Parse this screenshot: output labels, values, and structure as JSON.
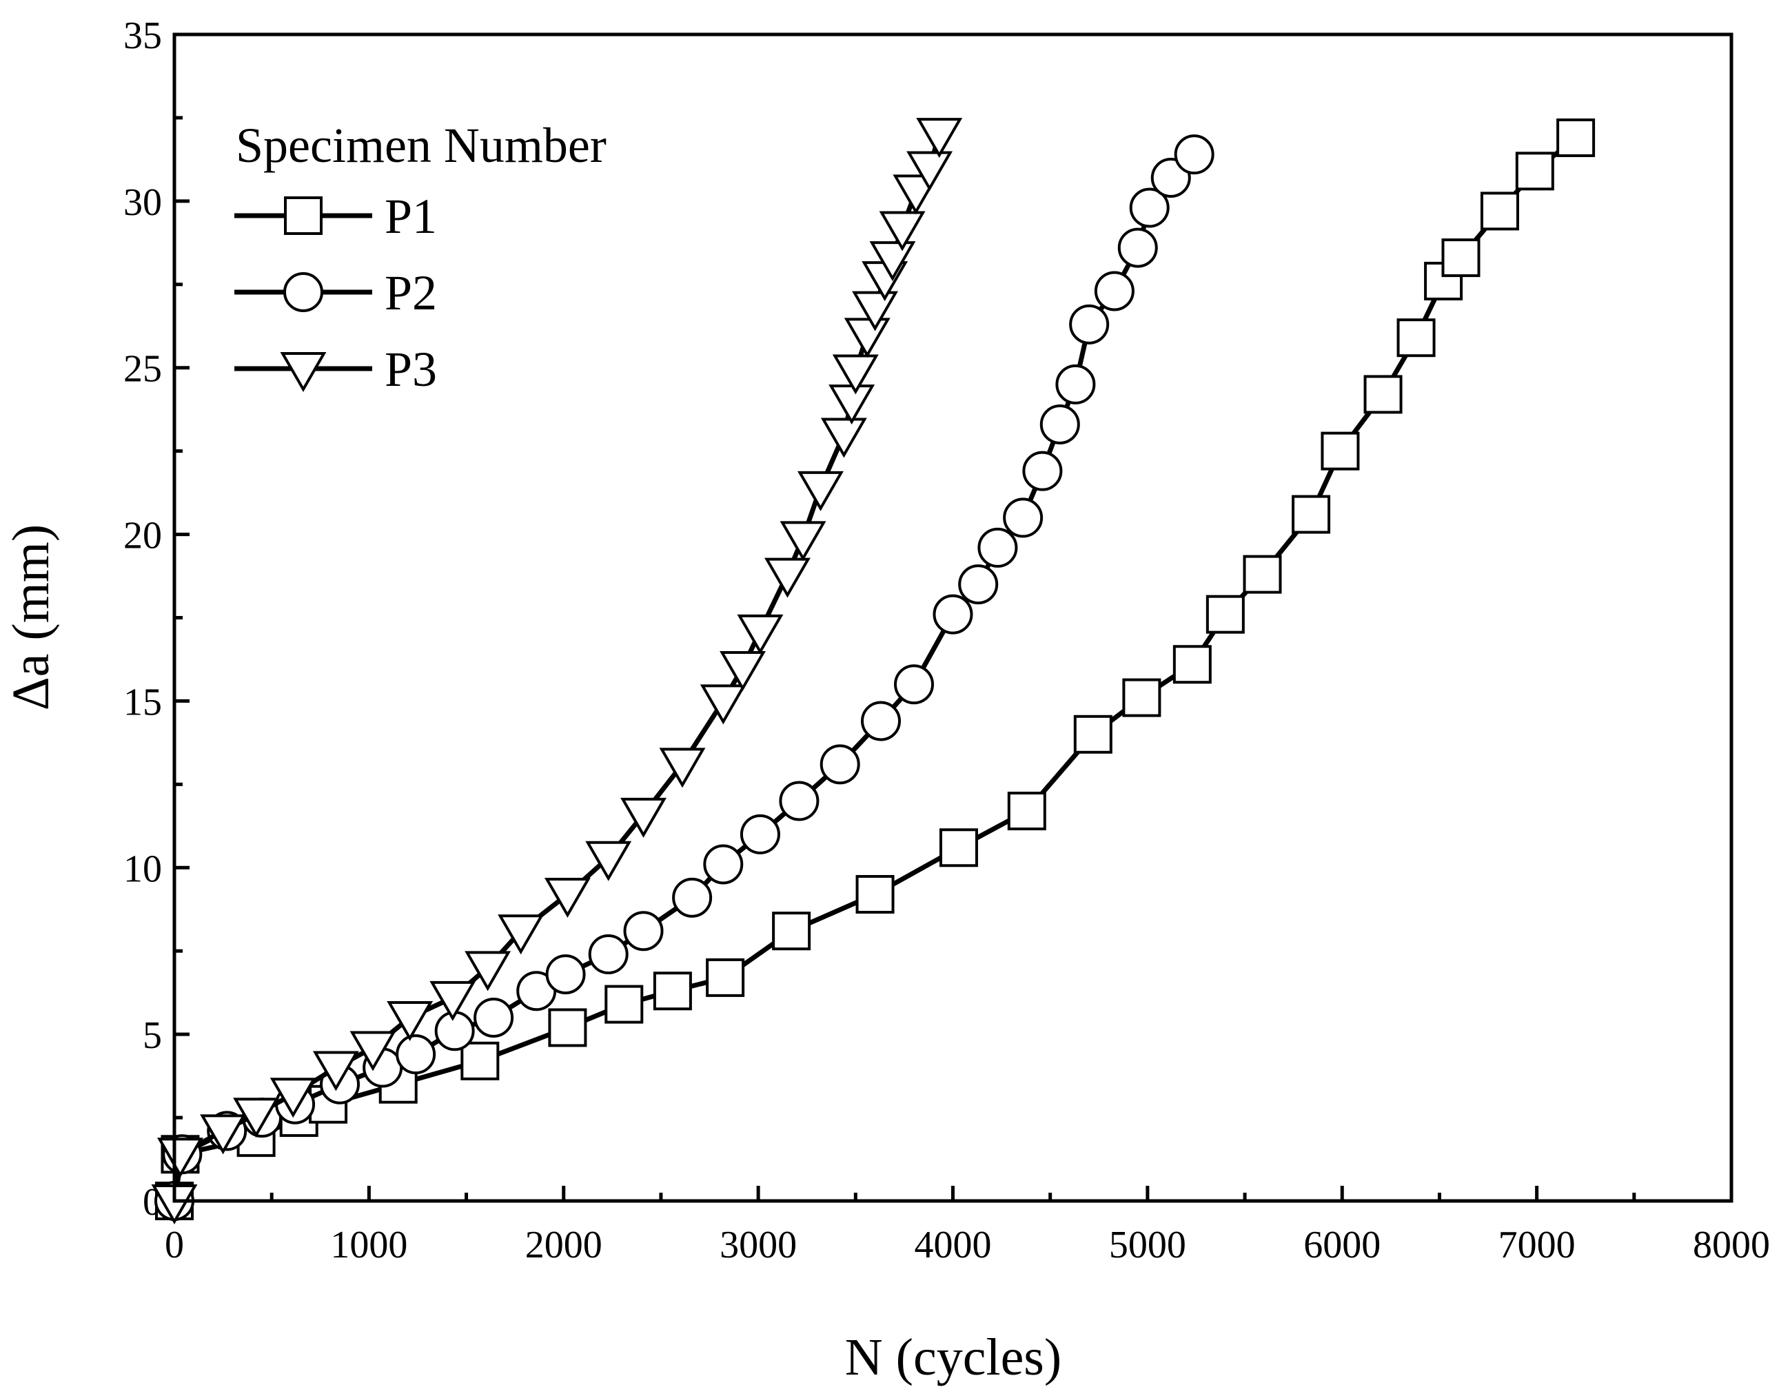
{
  "chart_data": {
    "type": "line",
    "xlabel": "N  (cycles)",
    "ylabel": "Δa (mm)",
    "xlim": [
      0,
      8000
    ],
    "ylim": [
      0,
      35
    ],
    "x_ticks": [
      0,
      1000,
      2000,
      3000,
      4000,
      5000,
      6000,
      7000,
      8000
    ],
    "x_tick_labels": [
      "0",
      "1000",
      "2000",
      "3000",
      "4000",
      "5000",
      "6000",
      "7000",
      "8000"
    ],
    "y_ticks": [
      0,
      5,
      10,
      15,
      20,
      25,
      30,
      35
    ],
    "y_tick_labels": [
      "0",
      "5",
      "10",
      "15",
      "20",
      "25",
      "30",
      "35"
    ],
    "grid": false,
    "legend": {
      "title": "Specimen Number",
      "position": "top-left"
    },
    "series": [
      {
        "name": "P1",
        "marker": "square",
        "x": [
          0,
          30,
          420,
          640,
          790,
          1150,
          1570,
          2020,
          2310,
          2560,
          2830,
          3170,
          3600,
          4030,
          4380,
          4720,
          4970,
          5230,
          5400,
          5590,
          5840,
          5990,
          6210,
          6380,
          6520,
          6610,
          6810,
          6990,
          7200
        ],
        "y": [
          0,
          1.4,
          1.9,
          2.5,
          2.9,
          3.5,
          4.2,
          5.2,
          5.9,
          6.3,
          6.7,
          8.1,
          9.2,
          10.6,
          11.7,
          14.0,
          15.1,
          16.1,
          17.6,
          18.8,
          20.6,
          22.5,
          24.2,
          25.9,
          27.6,
          28.3,
          29.7,
          30.9,
          31.9
        ]
      },
      {
        "name": "P2",
        "marker": "circle",
        "x": [
          0,
          40,
          270,
          450,
          620,
          850,
          1070,
          1240,
          1440,
          1640,
          1860,
          2010,
          2230,
          2410,
          2660,
          2820,
          3010,
          3210,
          3420,
          3630,
          3800,
          4000,
          4130,
          4230,
          4360,
          4460,
          4550,
          4630,
          4700,
          4830,
          4950,
          5010,
          5120,
          5240
        ],
        "y": [
          0,
          1.4,
          2.1,
          2.5,
          2.9,
          3.5,
          4.0,
          4.4,
          5.1,
          5.5,
          6.3,
          6.8,
          7.4,
          8.1,
          9.1,
          10.1,
          11.0,
          12.0,
          13.1,
          14.4,
          15.5,
          17.6,
          18.5,
          19.6,
          20.5,
          21.9,
          23.3,
          24.5,
          26.3,
          27.3,
          28.6,
          29.8,
          30.7,
          31.4
        ]
      },
      {
        "name": "P3",
        "marker": "triangle-down",
        "x": [
          0,
          30,
          250,
          420,
          610,
          830,
          1020,
          1210,
          1430,
          1610,
          1780,
          2020,
          2230,
          2410,
          2610,
          2820,
          2920,
          3010,
          3150,
          3230,
          3320,
          3440,
          3480,
          3500,
          3560,
          3600,
          3650,
          3690,
          3740,
          3810,
          3880,
          3930
        ],
        "y": [
          0,
          1.4,
          2.1,
          2.6,
          3.2,
          4.0,
          4.6,
          5.5,
          6.1,
          7.0,
          8.1,
          9.2,
          10.3,
          11.6,
          13.1,
          15.0,
          16.0,
          17.1,
          18.8,
          19.9,
          21.4,
          23.0,
          24.0,
          24.9,
          26.0,
          26.8,
          27.7,
          28.3,
          29.2,
          30.3,
          31.0,
          32.0
        ]
      }
    ]
  }
}
